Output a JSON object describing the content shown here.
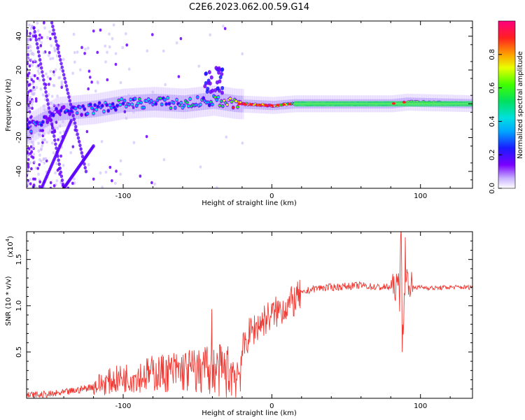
{
  "figure_title": "C2E6.2023.062.00.59.G14",
  "colors": {
    "snr_line": "#f03a34",
    "trace_core": "#1fe070",
    "trace_hot": "#ff1a1a",
    "speckle": "#7a00ff"
  },
  "chart_data": [
    {
      "type": "heatmap",
      "title": "",
      "xlabel": "Height of straight line (km)",
      "ylabel": "Frequency (Hz)",
      "xlim": [
        -165,
        135
      ],
      "ylim": [
        -50,
        49
      ],
      "xticks": [
        -100,
        0,
        100
      ],
      "xtick_labels": [
        "-100",
        "0",
        "100"
      ],
      "yticks": [
        -40,
        -20,
        0,
        20,
        40
      ],
      "ytick_labels": [
        "-40",
        "-20",
        "0",
        "20",
        "40"
      ],
      "colorbar": {
        "label": "Normalized spectral amplitude",
        "range": [
          0.0,
          1.0
        ],
        "ticks": [
          0.0,
          0.2,
          0.4,
          0.6,
          0.8
        ],
        "tick_labels": [
          "0.0",
          "0.2",
          "0.4",
          "0.6",
          "0.8"
        ],
        "colormap": "rainbow"
      },
      "ridge": [
        {
          "x": -165,
          "freq": -15,
          "amp": 0.35
        },
        {
          "x": -145,
          "freq": -5,
          "amp": 0.3
        },
        {
          "x": -120,
          "freq": -3,
          "amp": 0.4
        },
        {
          "x": -100,
          "freq": 0,
          "amp": 0.45
        },
        {
          "x": -80,
          "freq": 1,
          "amp": 0.45
        },
        {
          "x": -60,
          "freq": 0,
          "amp": 0.5
        },
        {
          "x": -40,
          "freq": 2,
          "amp": 0.5
        },
        {
          "x": -25,
          "freq": 0,
          "amp": 0.85
        },
        {
          "x": 0,
          "freq": -1,
          "amp": 0.9
        },
        {
          "x": 15,
          "freq": 0,
          "amp": 0.6
        },
        {
          "x": 50,
          "freq": 0,
          "amp": 0.5
        },
        {
          "x": 80,
          "freq": 0,
          "amp": 0.55
        },
        {
          "x": 90,
          "freq": 1,
          "amp": 0.85
        },
        {
          "x": 135,
          "freq": 0,
          "amp": 0.5
        }
      ]
    },
    {
      "type": "line",
      "title": "",
      "xlabel": "Height of straight line (km)",
      "ylabel": "SNR (10 * v/v)",
      "y_multiplier_label": "(x10",
      "y_multiplier_exp": "4",
      "xlim": [
        -165,
        135
      ],
      "ylim": [
        0,
        1.8
      ],
      "xticks": [
        -100,
        0,
        100
      ],
      "xtick_labels": [
        "-100",
        "0",
        "100"
      ],
      "yticks": [
        0.5,
        1.0,
        1.5
      ],
      "ytick_labels": [
        "0.5",
        "1.0",
        "1.5"
      ],
      "series": [
        {
          "x": [
            -165,
            -150,
            -140,
            -130,
            -120,
            -110,
            -100,
            -90,
            -80,
            -70,
            -60,
            -50,
            -40,
            -30,
            -22,
            -20,
            -15,
            -10,
            -5,
            0,
            5,
            10,
            15,
            20,
            25,
            30,
            40,
            50,
            60,
            70,
            80,
            85,
            87,
            88,
            90,
            95,
            100,
            110,
            120,
            135
          ],
          "values": [
            0.03,
            0.04,
            0.06,
            0.09,
            0.13,
            0.18,
            0.22,
            0.24,
            0.27,
            0.28,
            0.3,
            0.3,
            0.3,
            0.29,
            0.28,
            0.5,
            0.7,
            0.78,
            0.85,
            0.9,
            0.95,
            1.0,
            1.05,
            1.12,
            1.17,
            1.19,
            1.2,
            1.21,
            1.22,
            1.2,
            1.2,
            1.2,
            1.7,
            0.7,
            1.3,
            1.2,
            1.2,
            1.19,
            1.2,
            1.2
          ]
        }
      ]
    }
  ]
}
